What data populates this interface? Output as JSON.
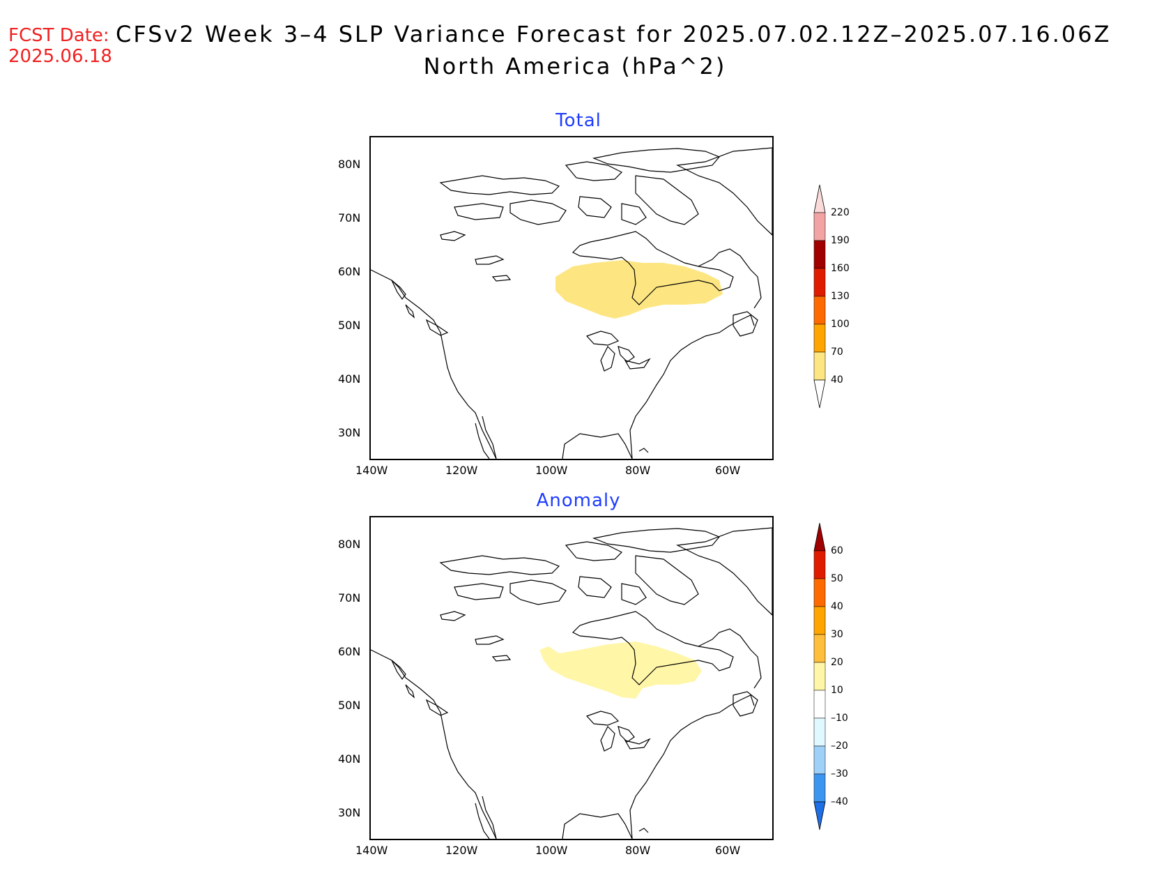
{
  "header": {
    "fcst_label": "FCST Date:",
    "fcst_date": "2025.06.18",
    "title": "CFSv2 Week 3–4 SLP Variance Forecast for 2025.07.02.12Z–2025.07.16.06Z",
    "subtitle": "North America (hPa^2)"
  },
  "axes": {
    "lat_labels": [
      "80N",
      "70N",
      "60N",
      "50N",
      "40N",
      "30N"
    ],
    "lon_labels": [
      "140W",
      "120W",
      "100W",
      "80W",
      "60W"
    ]
  },
  "panels": [
    {
      "title": "Total",
      "shaded_region": {
        "description_value": "40–70",
        "color": "#fde682"
      },
      "colorbar": {
        "levels": [
          "220",
          "190",
          "160",
          "130",
          "100",
          "70",
          "40"
        ],
        "colors": [
          "#fbdada",
          "#f2a3a3",
          "#a00000",
          "#e01c00",
          "#ff6a00",
          "#ffa500",
          "#fde682"
        ]
      }
    },
    {
      "title": "Anomaly",
      "shaded_region": {
        "description_value": "10–20",
        "color": "#fff6a8"
      },
      "colorbar": {
        "levels": [
          "60",
          "50",
          "40",
          "30",
          "20",
          "10",
          "–10",
          "–20",
          "–30",
          "–40"
        ],
        "colors": [
          "#a00000",
          "#e01c00",
          "#ff6a00",
          "#ffa500",
          "#ffbe3c",
          "#fff6a8",
          "#ffffff",
          "#e0f8ff",
          "#9fd0f8",
          "#3c96f0",
          "#1e6ee6"
        ]
      }
    }
  ]
}
